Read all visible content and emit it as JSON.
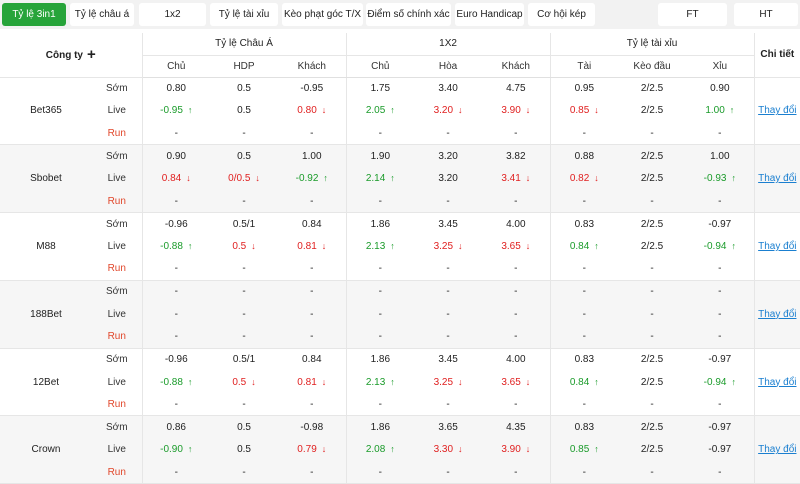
{
  "tabs": [
    {
      "label": "Tỷ lệ 3in1",
      "active": true
    },
    {
      "label": "Tỷ lệ châu á",
      "active": false
    },
    {
      "label": "1x2",
      "active": false
    },
    {
      "label": "Tỷ lệ tài xỉu",
      "active": false
    },
    {
      "label": "Kèo phạt góc T/X",
      "active": false
    },
    {
      "label": "Điểm số chính xác",
      "active": false
    },
    {
      "label": "Euro Handicap",
      "active": false
    },
    {
      "label": "Cơ hội kép",
      "active": false
    },
    {
      "label": "FT",
      "active": false
    },
    {
      "label": "HT",
      "active": false
    }
  ],
  "header": {
    "company": "Công ty",
    "plus": "+",
    "groups": [
      "Tỷ lệ Châu Á",
      "1X2",
      "Tỷ lệ tài xỉu"
    ],
    "detail": "Chi tiết",
    "sub": [
      "Chủ",
      "HDP",
      "Khách",
      "Chủ",
      "Hòa",
      "Khách",
      "Tài",
      "Kèo đầu",
      "Xỉu"
    ]
  },
  "row_labels": [
    "Sớm",
    "Live",
    "Run"
  ],
  "link_label": "Thay đổi",
  "colors": {
    "up": "#1a9b2a",
    "down": "#e02020",
    "active_tab": "#27a43a",
    "link": "#1a7fd0"
  },
  "companies": [
    {
      "name": "Bet365",
      "rows": [
        [
          {
            "v": "0.80"
          },
          {
            "v": "0.5"
          },
          {
            "v": "-0.95"
          },
          {
            "v": "1.75"
          },
          {
            "v": "3.40"
          },
          {
            "v": "4.75"
          },
          {
            "v": "0.95"
          },
          {
            "v": "2/2.5"
          },
          {
            "v": "0.90"
          }
        ],
        [
          {
            "v": "-0.95",
            "t": "up"
          },
          {
            "v": "0.5"
          },
          {
            "v": "0.80",
            "t": "down"
          },
          {
            "v": "2.05",
            "t": "up"
          },
          {
            "v": "3.20",
            "t": "down"
          },
          {
            "v": "3.90",
            "t": "down"
          },
          {
            "v": "0.85",
            "t": "down"
          },
          {
            "v": "2/2.5"
          },
          {
            "v": "1.00",
            "t": "up"
          }
        ],
        [
          {
            "v": "-"
          },
          {
            "v": "-"
          },
          {
            "v": "-"
          },
          {
            "v": "-"
          },
          {
            "v": "-"
          },
          {
            "v": "-"
          },
          {
            "v": "-"
          },
          {
            "v": "-"
          },
          {
            "v": "-"
          }
        ]
      ]
    },
    {
      "name": "Sbobet",
      "rows": [
        [
          {
            "v": "0.90"
          },
          {
            "v": "0.5"
          },
          {
            "v": "1.00"
          },
          {
            "v": "1.90"
          },
          {
            "v": "3.20"
          },
          {
            "v": "3.82"
          },
          {
            "v": "0.88"
          },
          {
            "v": "2/2.5"
          },
          {
            "v": "1.00"
          }
        ],
        [
          {
            "v": "0.84",
            "t": "down"
          },
          {
            "v": "0/0.5",
            "t": "down"
          },
          {
            "v": "-0.92",
            "t": "up"
          },
          {
            "v": "2.14",
            "t": "up"
          },
          {
            "v": "3.20"
          },
          {
            "v": "3.41",
            "t": "down"
          },
          {
            "v": "0.82",
            "t": "down"
          },
          {
            "v": "2/2.5"
          },
          {
            "v": "-0.93",
            "t": "up"
          }
        ],
        [
          {
            "v": "-"
          },
          {
            "v": "-"
          },
          {
            "v": "-"
          },
          {
            "v": "-"
          },
          {
            "v": "-"
          },
          {
            "v": "-"
          },
          {
            "v": "-"
          },
          {
            "v": "-"
          },
          {
            "v": "-"
          }
        ]
      ]
    },
    {
      "name": "M88",
      "rows": [
        [
          {
            "v": "-0.96"
          },
          {
            "v": "0.5/1"
          },
          {
            "v": "0.84"
          },
          {
            "v": "1.86"
          },
          {
            "v": "3.45"
          },
          {
            "v": "4.00"
          },
          {
            "v": "0.83"
          },
          {
            "v": "2/2.5"
          },
          {
            "v": "-0.97"
          }
        ],
        [
          {
            "v": "-0.88",
            "t": "up"
          },
          {
            "v": "0.5",
            "t": "down"
          },
          {
            "v": "0.81",
            "t": "down"
          },
          {
            "v": "2.13",
            "t": "up"
          },
          {
            "v": "3.25",
            "t": "down"
          },
          {
            "v": "3.65",
            "t": "down"
          },
          {
            "v": "0.84",
            "t": "up"
          },
          {
            "v": "2/2.5"
          },
          {
            "v": "-0.94",
            "t": "up"
          }
        ],
        [
          {
            "v": "-"
          },
          {
            "v": "-"
          },
          {
            "v": "-"
          },
          {
            "v": "-"
          },
          {
            "v": "-"
          },
          {
            "v": "-"
          },
          {
            "v": "-"
          },
          {
            "v": "-"
          },
          {
            "v": "-"
          }
        ]
      ]
    },
    {
      "name": "188Bet",
      "rows": [
        [
          {
            "v": "-"
          },
          {
            "v": "-"
          },
          {
            "v": "-"
          },
          {
            "v": "-"
          },
          {
            "v": "-"
          },
          {
            "v": "-"
          },
          {
            "v": "-"
          },
          {
            "v": "-"
          },
          {
            "v": "-"
          }
        ],
        [
          {
            "v": "-"
          },
          {
            "v": "-"
          },
          {
            "v": "-"
          },
          {
            "v": "-"
          },
          {
            "v": "-"
          },
          {
            "v": "-"
          },
          {
            "v": "-"
          },
          {
            "v": "-"
          },
          {
            "v": "-"
          }
        ],
        [
          {
            "v": "-"
          },
          {
            "v": "-"
          },
          {
            "v": "-"
          },
          {
            "v": "-"
          },
          {
            "v": "-"
          },
          {
            "v": "-"
          },
          {
            "v": "-"
          },
          {
            "v": "-"
          },
          {
            "v": "-"
          }
        ]
      ]
    },
    {
      "name": "12Bet",
      "rows": [
        [
          {
            "v": "-0.96"
          },
          {
            "v": "0.5/1"
          },
          {
            "v": "0.84"
          },
          {
            "v": "1.86"
          },
          {
            "v": "3.45"
          },
          {
            "v": "4.00"
          },
          {
            "v": "0.83"
          },
          {
            "v": "2/2.5"
          },
          {
            "v": "-0.97"
          }
        ],
        [
          {
            "v": "-0.88",
            "t": "up"
          },
          {
            "v": "0.5",
            "t": "down"
          },
          {
            "v": "0.81",
            "t": "down"
          },
          {
            "v": "2.13",
            "t": "up"
          },
          {
            "v": "3.25",
            "t": "down"
          },
          {
            "v": "3.65",
            "t": "down"
          },
          {
            "v": "0.84",
            "t": "up"
          },
          {
            "v": "2/2.5"
          },
          {
            "v": "-0.94",
            "t": "up"
          }
        ],
        [
          {
            "v": "-"
          },
          {
            "v": "-"
          },
          {
            "v": "-"
          },
          {
            "v": "-"
          },
          {
            "v": "-"
          },
          {
            "v": "-"
          },
          {
            "v": "-"
          },
          {
            "v": "-"
          },
          {
            "v": "-"
          }
        ]
      ]
    },
    {
      "name": "Crown",
      "rows": [
        [
          {
            "v": "0.86"
          },
          {
            "v": "0.5"
          },
          {
            "v": "-0.98"
          },
          {
            "v": "1.86"
          },
          {
            "v": "3.65"
          },
          {
            "v": "4.35"
          },
          {
            "v": "0.83"
          },
          {
            "v": "2/2.5"
          },
          {
            "v": "-0.97"
          }
        ],
        [
          {
            "v": "-0.90",
            "t": "up"
          },
          {
            "v": "0.5"
          },
          {
            "v": "0.79",
            "t": "down"
          },
          {
            "v": "2.08",
            "t": "up"
          },
          {
            "v": "3.30",
            "t": "down"
          },
          {
            "v": "3.90",
            "t": "down"
          },
          {
            "v": "0.85",
            "t": "up"
          },
          {
            "v": "2/2.5"
          },
          {
            "v": "-0.97"
          }
        ],
        [
          {
            "v": "-"
          },
          {
            "v": "-"
          },
          {
            "v": "-"
          },
          {
            "v": "-"
          },
          {
            "v": "-"
          },
          {
            "v": "-"
          },
          {
            "v": "-"
          },
          {
            "v": "-"
          },
          {
            "v": "-"
          }
        ]
      ]
    }
  ]
}
